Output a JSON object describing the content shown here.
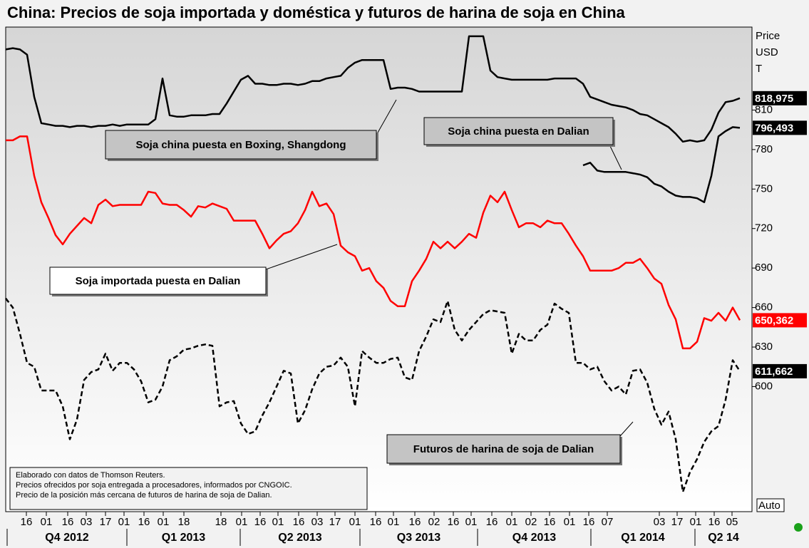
{
  "chart_data": {
    "type": "line",
    "title": "China: Precios de soja importada y doméstica y futuros de harina de soja en China",
    "y_label": [
      "Price",
      "USD",
      "T"
    ],
    "y_scale_button": "Auto",
    "ylim": [
      505,
      873
    ],
    "yticks": [
      600,
      630,
      660,
      690,
      720,
      750,
      780,
      810
    ],
    "xlim": [
      0,
      104.7
    ],
    "x": [
      0,
      1,
      2,
      3,
      4,
      5,
      6,
      7,
      8,
      9,
      10,
      11,
      12,
      13,
      14,
      15,
      16,
      17,
      18,
      19,
      20,
      21,
      22,
      23,
      24,
      25,
      26,
      27,
      28,
      29,
      30,
      31,
      32,
      33,
      34,
      35,
      36,
      37,
      38,
      39,
      40,
      41,
      42,
      43,
      44,
      45,
      46,
      47,
      48,
      49,
      50,
      51,
      52,
      53,
      54,
      55,
      56,
      57,
      58,
      59,
      60,
      61,
      62,
      63,
      64,
      65,
      66,
      67,
      68,
      69,
      70,
      71,
      72,
      73,
      74,
      75,
      76,
      77,
      78,
      79,
      80,
      81,
      82,
      83,
      84,
      85,
      86,
      87,
      88,
      89,
      90,
      91,
      92,
      93,
      94,
      95,
      96,
      97,
      98,
      99,
      100,
      101,
      102,
      103
    ],
    "xticks": [
      {
        "value": 2.9,
        "label": "16"
      },
      {
        "value": 5.7,
        "label": "01"
      },
      {
        "value": 8.7,
        "label": "16"
      },
      {
        "value": 11.3,
        "label": "03"
      },
      {
        "value": 14,
        "label": "17"
      },
      {
        "value": 16.6,
        "label": "01"
      },
      {
        "value": 19.4,
        "label": "16"
      },
      {
        "value": 22.1,
        "label": "01"
      },
      {
        "value": 25,
        "label": "18"
      },
      {
        "value": 30.2,
        "label": "18"
      },
      {
        "value": 33.1,
        "label": "01"
      },
      {
        "value": 35.7,
        "label": "16"
      },
      {
        "value": 38.2,
        "label": "01"
      },
      {
        "value": 41.1,
        "label": "16"
      },
      {
        "value": 43.7,
        "label": "03"
      },
      {
        "value": 46.2,
        "label": "17"
      },
      {
        "value": 49,
        "label": "01"
      },
      {
        "value": 51.9,
        "label": "16"
      },
      {
        "value": 54.4,
        "label": "01"
      },
      {
        "value": 57.4,
        "label": "16"
      },
      {
        "value": 60.1,
        "label": "02"
      },
      {
        "value": 62.8,
        "label": "16"
      },
      {
        "value": 65.3,
        "label": "01"
      },
      {
        "value": 68.2,
        "label": "16"
      },
      {
        "value": 71,
        "label": "01"
      },
      {
        "value": 73.7,
        "label": "02"
      },
      {
        "value": 76.3,
        "label": "16"
      },
      {
        "value": 79.1,
        "label": "01"
      },
      {
        "value": 81.8,
        "label": "16"
      },
      {
        "value": 84.4,
        "label": "07"
      },
      {
        "value": 91.7,
        "label": "03"
      },
      {
        "value": 94.2,
        "label": "17"
      },
      {
        "value": 96.8,
        "label": "01"
      },
      {
        "value": 99.4,
        "label": "16"
      },
      {
        "value": 101.9,
        "label": "05"
      }
    ],
    "x_periods": [
      {
        "value": 0.2,
        "label": "Q4 2012"
      },
      {
        "value": 17,
        "label": "Q1 2013"
      },
      {
        "value": 32.9,
        "label": "Q2 2013"
      },
      {
        "value": 49.7,
        "label": "Q3 2013"
      },
      {
        "value": 66.2,
        "label": "Q4 2013"
      },
      {
        "value": 82.1,
        "label": "Q1 2014"
      },
      {
        "value": 96.7,
        "label": "Q2 14"
      }
    ],
    "series": [
      {
        "name": "Soja china puesta en Boxing, Shangdong",
        "color": "#000000",
        "style": "solid",
        "end_label": "818,975",
        "values": [
          856,
          857,
          856,
          852,
          820,
          800,
          799,
          798,
          798,
          797,
          798,
          798,
          797,
          798,
          798,
          799,
          798,
          799,
          799,
          799,
          799,
          803,
          834,
          806,
          805,
          805,
          806,
          806,
          806,
          807,
          807,
          815,
          824,
          833,
          836,
          830,
          830,
          829,
          829,
          830,
          830,
          829,
          830,
          832,
          832,
          834,
          835,
          836,
          842,
          846,
          848,
          848,
          848,
          848,
          826,
          827,
          827,
          826,
          824,
          824,
          824,
          824,
          824,
          824,
          824,
          866,
          866,
          866,
          840,
          835,
          834,
          833,
          833,
          833,
          833,
          833,
          833,
          834,
          834,
          834,
          834,
          830,
          820,
          818,
          816,
          814,
          813,
          812,
          810,
          807,
          806,
          803,
          800,
          797,
          792,
          786,
          787,
          786,
          787,
          795,
          808,
          816,
          817,
          818.975
        ]
      },
      {
        "name": "Soja china puesta en Dalian",
        "color": "#000000",
        "style": "solid",
        "end_label": "796,493",
        "values": [
          null,
          null,
          null,
          null,
          null,
          null,
          null,
          null,
          null,
          null,
          null,
          null,
          null,
          null,
          null,
          null,
          null,
          null,
          null,
          null,
          null,
          null,
          null,
          null,
          null,
          null,
          null,
          null,
          null,
          null,
          null,
          null,
          null,
          null,
          null,
          null,
          null,
          null,
          null,
          null,
          null,
          null,
          null,
          null,
          null,
          null,
          null,
          null,
          null,
          null,
          null,
          null,
          null,
          null,
          null,
          null,
          null,
          null,
          null,
          null,
          null,
          null,
          null,
          null,
          null,
          null,
          null,
          null,
          null,
          null,
          null,
          null,
          null,
          null,
          null,
          null,
          null,
          null,
          null,
          null,
          null,
          768,
          770,
          764,
          763,
          763,
          763,
          763,
          762,
          761,
          759,
          754,
          752,
          748,
          745,
          744,
          744,
          743,
          740,
          760,
          790,
          794,
          797,
          796.493
        ]
      },
      {
        "name": "Soja importada puesta en Dalian",
        "color": "#ff0000",
        "style": "solid",
        "end_label": "650,362",
        "values": [
          787,
          787,
          790,
          790,
          760,
          740,
          728,
          715,
          708,
          716,
          722,
          728,
          724,
          738,
          742,
          737,
          738,
          738,
          738,
          738,
          748,
          747,
          739,
          738,
          738,
          734,
          729,
          737,
          736,
          739,
          737,
          735,
          726,
          726,
          726,
          726,
          716,
          705,
          711,
          716,
          718,
          724,
          734,
          748,
          737,
          739,
          731,
          707,
          702,
          699,
          688,
          690,
          680,
          675,
          665,
          661,
          661,
          680,
          688,
          697,
          710,
          705,
          710,
          705,
          710,
          716,
          713,
          732,
          745,
          740,
          748,
          734,
          721,
          724,
          724,
          721,
          726,
          724,
          724,
          716,
          707,
          699,
          688,
          688,
          688,
          688,
          690,
          694,
          694,
          697,
          690,
          682,
          678,
          662,
          651,
          629,
          629,
          634,
          652,
          650,
          656,
          650,
          660,
          650.362
        ]
      },
      {
        "name": "Futuros de harina de soja de Dalian",
        "color": "#000000",
        "style": "dashed",
        "end_label": "611,662",
        "values": [
          667,
          660,
          640,
          618,
          615,
          597,
          597,
          597,
          585,
          560,
          575,
          605,
          611,
          613,
          625,
          612,
          618,
          618,
          613,
          604,
          588,
          590,
          600,
          620,
          623,
          628,
          629,
          631,
          632,
          631,
          585,
          588,
          589,
          572,
          564,
          566,
          578,
          588,
          600,
          612,
          610,
          572,
          582,
          598,
          610,
          615,
          616,
          622,
          615,
          585,
          627,
          622,
          618,
          618,
          621,
          622,
          607,
          605,
          627,
          638,
          651,
          649,
          665,
          643,
          635,
          643,
          649,
          655,
          658,
          657,
          656,
          625,
          640,
          635,
          635,
          643,
          647,
          663,
          659,
          656,
          618,
          618,
          613,
          615,
          604,
          597,
          600,
          594,
          612,
          613,
          603,
          583,
          571,
          581,
          560,
          520,
          535,
          545,
          558,
          566,
          570,
          590,
          620,
          611.662
        ]
      }
    ],
    "notes": [
      "Elaborado con datos de Thomson Reuters.",
      "Precios ofrecidos por soja entregada a procesadores, informados por CNGOIC.",
      "Precio de la posición más cercana de futuros de harina de soja de Dalian."
    ]
  }
}
